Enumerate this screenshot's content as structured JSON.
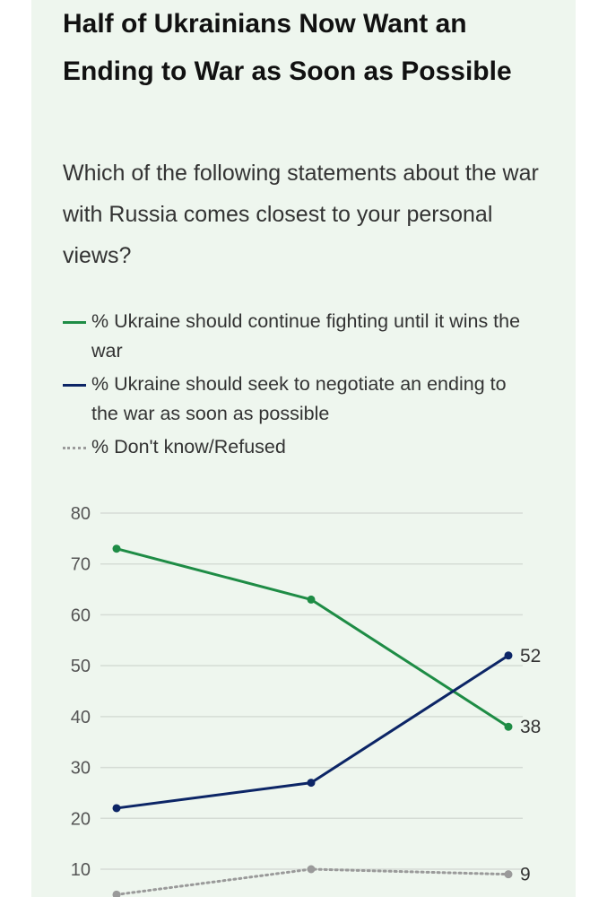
{
  "chart_data": {
    "type": "line",
    "title": "Half of Ukrainians Now Want an Ending to War as Soon as Possible",
    "subtitle": "Which of the following statements about the war with Russia comes closest to your personal views?",
    "ylim": [
      0,
      80
    ],
    "yticks": [
      10,
      20,
      30,
      40,
      50,
      60,
      70,
      80
    ],
    "x": [
      1,
      2,
      3
    ],
    "grid": true,
    "legend_position": "top",
    "series": [
      {
        "name": "% Ukraine should continue fighting until it wins the war",
        "values": [
          73,
          63,
          38
        ],
        "color": "#1e8c45",
        "style": "solid",
        "end_label": "38"
      },
      {
        "name": "% Ukraine should seek to negotiate an ending to the war as soon as possible",
        "values": [
          22,
          27,
          52
        ],
        "color": "#0c2566",
        "style": "solid",
        "end_label": "52"
      },
      {
        "name": "% Don't know/Refused",
        "values": [
          5,
          10,
          9
        ],
        "color": "#9a9a9a",
        "style": "dotted",
        "end_label": "9"
      }
    ]
  }
}
